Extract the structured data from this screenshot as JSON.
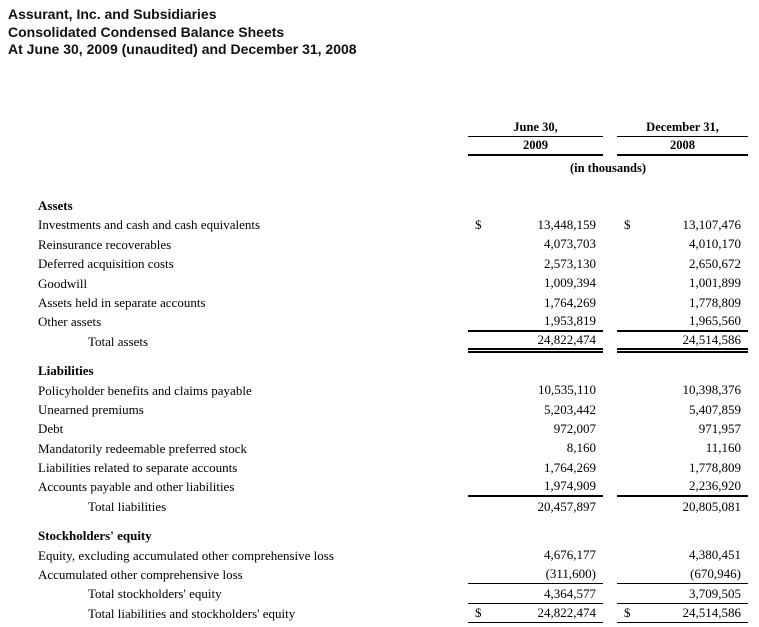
{
  "title": {
    "line1": "Assurant, Inc. and Subsidiaries",
    "line2": "Consolidated Condensed Balance Sheets",
    "line3": "At June 30, 2009 (unaudited) and December 31, 2008"
  },
  "table": {
    "columns": {
      "col1_month": "June 30,",
      "col1_year": "2009",
      "col2_month": "December 31,",
      "col2_year": "2008"
    },
    "units_note": "(in thousands)",
    "sections": [
      {
        "heading": "Assets",
        "rows": [
          {
            "label": "Investments and cash and cash equivalents",
            "dollar": "$",
            "v2009": "13,448,159",
            "v2008": "13,107,476"
          },
          {
            "label": "Reinsurance recoverables",
            "v2009": "4,073,703",
            "v2008": "4,010,170"
          },
          {
            "label": "Deferred acquisition costs",
            "v2009": "2,573,130",
            "v2008": "2,650,672"
          },
          {
            "label": "Goodwill",
            "v2009": "1,009,394",
            "v2008": "1,001,899"
          },
          {
            "label": "Assets held in separate accounts",
            "v2009": "1,764,269",
            "v2008": "1,778,809"
          },
          {
            "label": "Other assets",
            "v2009": "1,953,819",
            "v2008": "1,965,560"
          },
          {
            "label": "Total assets",
            "v2009": "24,822,474",
            "v2008": "24,514,586"
          }
        ]
      },
      {
        "heading": "Liabilities",
        "rows": [
          {
            "label": "Policyholder benefits and claims payable",
            "v2009": "10,535,110",
            "v2008": "10,398,376"
          },
          {
            "label": "Unearned premiums",
            "v2009": "5,203,442",
            "v2008": "5,407,859"
          },
          {
            "label": "Debt",
            "v2009": "972,007",
            "v2008": "971,957"
          },
          {
            "label": "Mandatorily redeemable preferred stock",
            "v2009": "8,160",
            "v2008": "11,160"
          },
          {
            "label": "Liabilities related to separate accounts",
            "v2009": "1,764,269",
            "v2008": "1,778,809"
          },
          {
            "label": "Accounts payable and other liabilities",
            "v2009": "1,974,909",
            "v2008": "2,236,920"
          },
          {
            "label": "Total liabilities",
            "v2009": "20,457,897",
            "v2008": "20,805,081"
          }
        ]
      },
      {
        "heading": "Stockholders' equity",
        "rows": [
          {
            "label": "Equity, excluding accumulated other comprehensive loss",
            "v2009": "4,676,177",
            "v2008": "4,380,451"
          },
          {
            "label": "Accumulated other comprehensive loss",
            "v2009": "(311,600)",
            "v2008": "(670,946)"
          },
          {
            "label": "Total stockholders' equity",
            "v2009": "4,364,577",
            "v2008": "3,709,505"
          },
          {
            "label": "Total liabilities and stockholders' equity",
            "dollar": "$",
            "v2009": "24,822,474",
            "v2008": "24,514,586"
          }
        ]
      }
    ]
  }
}
